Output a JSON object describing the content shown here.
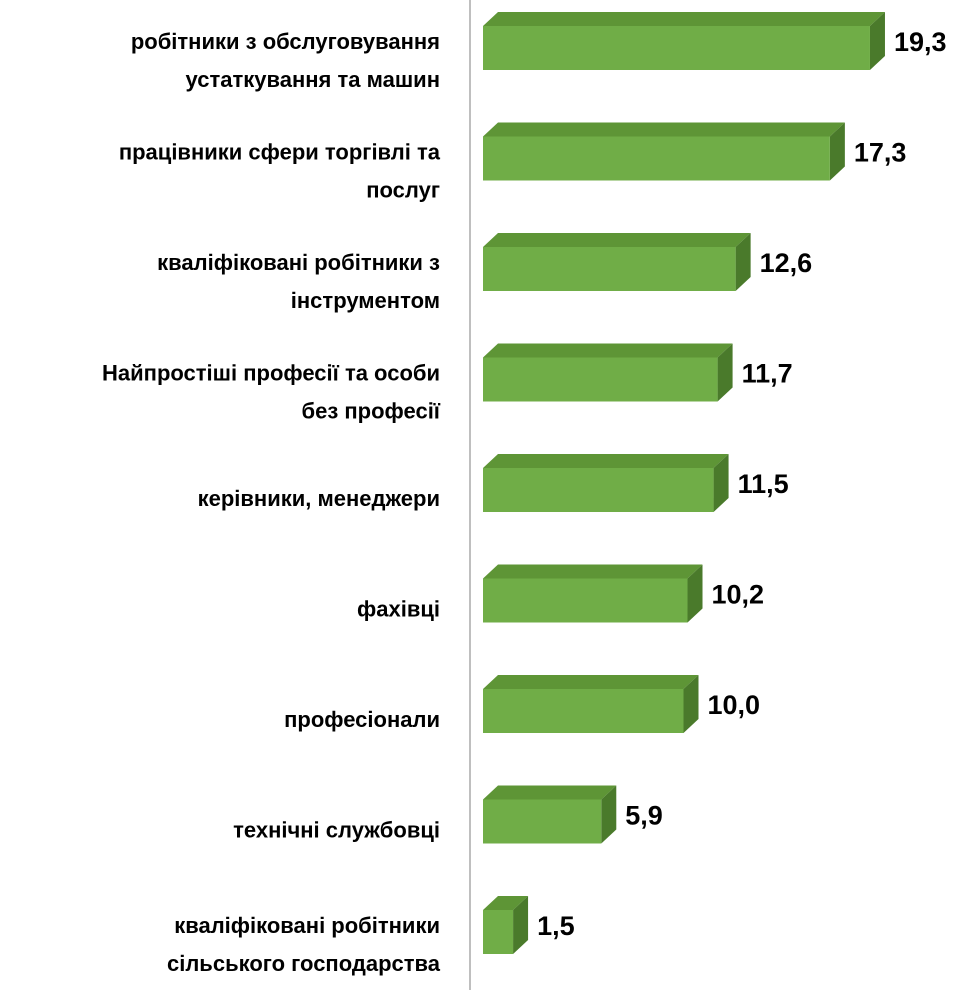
{
  "chart_data": {
    "type": "bar3d-horizontal",
    "categories": [
      [
        "робітники з обслуговування",
        "устаткування та машин"
      ],
      [
        "працівники сфери торгівлі та",
        "послуг"
      ],
      [
        "кваліфіковані робітники з",
        "інструментом"
      ],
      [
        "Найпростіші професії та особи",
        "без професії"
      ],
      [
        "керівники, менеджери"
      ],
      [
        "фахівці"
      ],
      [
        "професіонали"
      ],
      [
        "технічні службовці"
      ],
      [
        "кваліфіковані робітники",
        "сільського господарства"
      ]
    ],
    "values": [
      19.3,
      17.3,
      12.6,
      11.7,
      11.5,
      10.2,
      10.0,
      5.9,
      1.5
    ],
    "value_labels": [
      "19,3",
      "17,3",
      "12,6",
      "11,7",
      "11,5",
      "10,2",
      "10,0",
      "5,9",
      "1,5"
    ],
    "xlim": [
      0,
      20
    ],
    "color": "#70ad47"
  }
}
